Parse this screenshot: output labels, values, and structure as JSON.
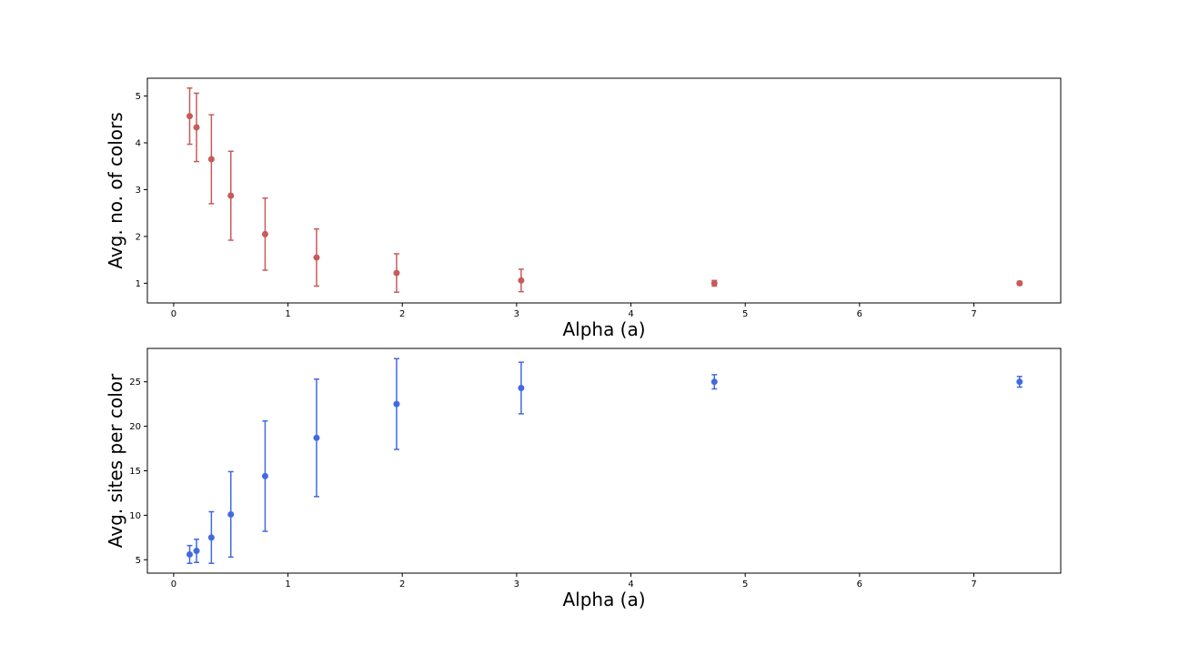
{
  "chart_data": [
    {
      "type": "scatter",
      "title": "",
      "xlabel": "Alpha (a)",
      "ylabel": "Avg. no. of colors",
      "xlim": [
        -0.23,
        7.76
      ],
      "ylim": [
        0.58,
        5.38
      ],
      "xticks": [
        0,
        1,
        2,
        3,
        4,
        5,
        6,
        7
      ],
      "yticks": [
        1,
        2,
        3,
        4,
        5
      ],
      "grid": false,
      "color": "#c85a5a",
      "series": [
        {
          "x": [
            0.14,
            0.2,
            0.33,
            0.5,
            0.8,
            1.25,
            1.95,
            3.04,
            4.73,
            7.4
          ],
          "y": [
            4.57,
            4.33,
            3.65,
            2.87,
            2.05,
            1.55,
            1.22,
            1.06,
            1.0,
            1.0
          ],
          "err": [
            0.6,
            0.73,
            0.95,
            0.95,
            0.77,
            0.61,
            0.41,
            0.24,
            0.06,
            0.04
          ]
        }
      ]
    },
    {
      "type": "scatter",
      "title": "",
      "xlabel": "Alpha (a)",
      "ylabel": "Avg. sites per color",
      "xlim": [
        -0.23,
        7.76
      ],
      "ylim": [
        3.5,
        28.75
      ],
      "xticks": [
        0,
        1,
        2,
        3,
        4,
        5,
        6,
        7
      ],
      "yticks": [
        5,
        10,
        15,
        20,
        25
      ],
      "grid": false,
      "color": "#4169e1",
      "series": [
        {
          "x": [
            0.14,
            0.2,
            0.33,
            0.5,
            0.8,
            1.25,
            1.95,
            3.04,
            4.73,
            7.4
          ],
          "y": [
            5.6,
            6.0,
            7.5,
            10.1,
            14.4,
            18.7,
            22.5,
            24.3,
            25.0,
            25.0
          ],
          "err": [
            1.0,
            1.3,
            2.9,
            4.8,
            6.2,
            6.6,
            5.1,
            2.9,
            0.8,
            0.6
          ]
        }
      ]
    }
  ]
}
